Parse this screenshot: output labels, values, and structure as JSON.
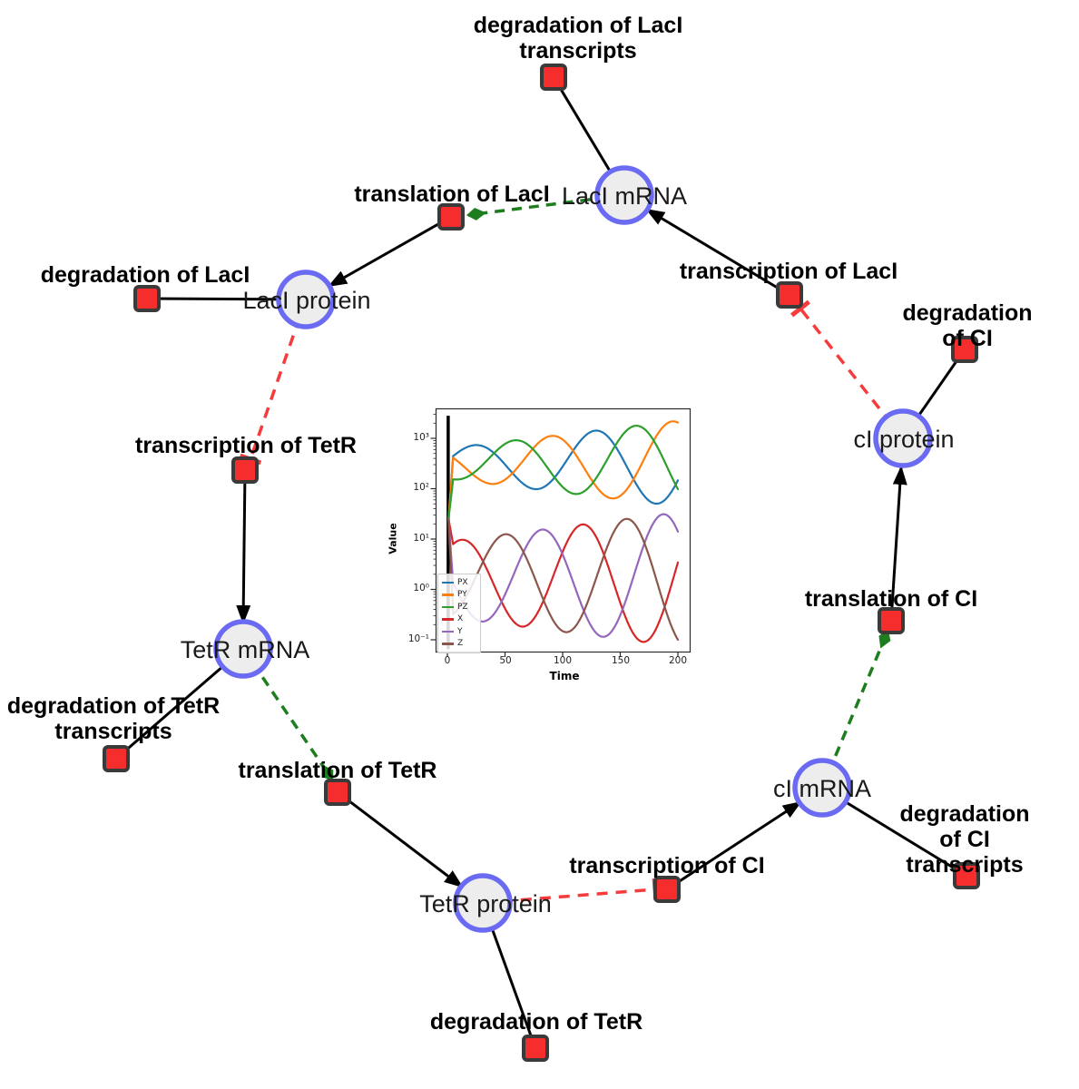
{
  "diagram": {
    "species": [
      {
        "id": "laci-mrna",
        "label": "LacI mRNA"
      },
      {
        "id": "laci-protein",
        "label": "LacI protein"
      },
      {
        "id": "tetr-mrna",
        "label": "TetR mRNA"
      },
      {
        "id": "tetr-protein",
        "label": "TetR protein"
      },
      {
        "id": "ci-mrna",
        "label": "cI mRNA"
      },
      {
        "id": "ci-protein",
        "label": "cI protein"
      }
    ],
    "reactions": [
      {
        "id": "deg-laci-transcripts",
        "label": "degradation of LacI\ntranscripts"
      },
      {
        "id": "translation-laci",
        "label": "translation of LacI"
      },
      {
        "id": "deg-laci",
        "label": "degradation of LacI"
      },
      {
        "id": "transcription-laci",
        "label": "transcription of LacI"
      },
      {
        "id": "deg-ci",
        "label": "degradation of CI"
      },
      {
        "id": "transcription-tetr",
        "label": "transcription of TetR"
      },
      {
        "id": "deg-tetr-transcripts",
        "label": "degradation of TetR\ntranscripts"
      },
      {
        "id": "translation-tetr",
        "label": "translation of TetR"
      },
      {
        "id": "deg-tetr",
        "label": "degradation of TetR"
      },
      {
        "id": "transcription-ci",
        "label": "transcription of CI"
      },
      {
        "id": "deg-ci-transcripts",
        "label": "degradation of CI\ntranscripts"
      },
      {
        "id": "translation-ci",
        "label": "translation of CI"
      }
    ],
    "colors": {
      "species_fill": "#ededed",
      "species_stroke": "#6a6af2",
      "reaction_fill": "#f62d2d",
      "reaction_stroke": "#3a3a3a",
      "consumption_edge": "#000000",
      "activation_edge": "#1e7d1e",
      "inhibition_edge": "#f53b3b"
    }
  },
  "chart_data": {
    "type": "line",
    "title": "",
    "xlabel": "Time",
    "ylabel": "Value",
    "yscale": "log",
    "xlim": [
      0,
      200
    ],
    "ylim": [
      0.06,
      4000
    ],
    "grid": false,
    "x_ticks": [
      0,
      50,
      100,
      150,
      200
    ],
    "y_tick_values": [
      0.1,
      1,
      10,
      100,
      1000
    ],
    "y_tick_labels": [
      "10⁻¹",
      "10⁰",
      "10¹",
      "10²",
      "10³"
    ],
    "legend": {
      "position": "lower left",
      "entries": [
        "PX",
        "PY",
        "PZ",
        "X",
        "Y",
        "Z"
      ]
    },
    "initial_spike": {
      "t": 0.7,
      "from": 0.065,
      "to": 2800,
      "color": "#000000"
    },
    "x_samples": [
      0,
      25,
      50,
      75,
      100,
      125,
      150,
      175,
      200
    ],
    "series": [
      {
        "name": "PX",
        "color": "#1f77b4",
        "y": [
          25,
          735,
          305,
          99,
          290,
          1360,
          480,
          58,
          145
        ],
        "model": {
          "log_center": 2.5,
          "log_amp_start": 0.3,
          "log_amp_end": 0.85,
          "period": 105,
          "peak_t": 23,
          "start_log": 1.4
        }
      },
      {
        "name": "PY",
        "color": "#ff7f0e",
        "y": [
          25,
          170,
          151,
          655,
          930,
          151,
          72,
          610,
          2050
        ],
        "model": {
          "log_center": 2.5,
          "log_amp_start": 0.3,
          "log_amp_end": 0.85,
          "period": 105,
          "peak_t": 90,
          "start_log": 1.4
        }
      },
      {
        "name": "PZ",
        "color": "#2ca02c",
        "y": [
          25,
          228,
          775,
          590,
          107,
          121,
          1020,
          1230,
          98
        ],
        "model": {
          "log_center": 2.5,
          "log_amp_start": 0.3,
          "log_amp_end": 0.85,
          "period": 105,
          "peak_t": 58,
          "start_log": 1.4
        }
      },
      {
        "name": "X",
        "color": "#d62728",
        "y": [
          25,
          6.1,
          0.42,
          0.26,
          5.6,
          15,
          0.59,
          0.1,
          3.4
        ],
        "model": {
          "log_center": 0.2,
          "log_amp_start": 0.75,
          "log_amp_end": 1.33,
          "period": 105,
          "peak_t": 12,
          "start_log": 1.4
        }
      },
      {
        "name": "Y",
        "color": "#9467bd",
        "y": [
          25,
          0.26,
          0.8,
          12,
          4.9,
          0.19,
          0.31,
          14,
          12.6
        ],
        "model": {
          "log_center": 0.2,
          "log_amp_start": 0.75,
          "log_amp_end": 1.33,
          "period": 105,
          "peak_t": 82,
          "start_log": 1.4
        }
      },
      {
        "name": "Z",
        "color": "#8c564b",
        "y": [
          25,
          1.8,
          12.5,
          1.9,
          0.14,
          0.88,
          19.5,
          4.0,
          0.1
        ],
        "model": {
          "log_center": 0.2,
          "log_amp_start": 0.75,
          "log_amp_end": 1.33,
          "period": 105,
          "peak_t": 50,
          "start_log": 1.4
        }
      }
    ]
  }
}
